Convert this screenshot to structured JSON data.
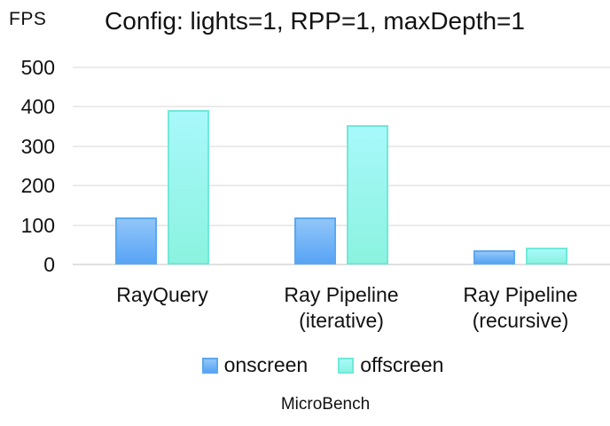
{
  "chart_data": {
    "type": "bar",
    "title": "Config: lights=1, RPP=1, maxDepth=1",
    "ylabel": "FPS",
    "xlabel": "",
    "ylim": [
      0,
      500
    ],
    "yticks": [
      0,
      100,
      200,
      300,
      400,
      500
    ],
    "grid": true,
    "legend_position": "bottom",
    "caption": "MicroBench",
    "categories": [
      [
        "RayQuery"
      ],
      [
        "Ray Pipeline",
        "(iterative)"
      ],
      [
        "Ray Pipeline",
        "(recursive)"
      ]
    ],
    "series": [
      {
        "name": "onscreen",
        "values": [
          120,
          120,
          35
        ],
        "fill_top": "#92C6F8",
        "fill_bottom": "#58A4F5",
        "border": "#5BA8F0"
      },
      {
        "name": "offscreen",
        "values": [
          393,
          353,
          42
        ],
        "fill_top": "#A8F8FB",
        "fill_bottom": "#8BF3DF",
        "border": "#70E9D9"
      }
    ],
    "colors": {
      "gridline": "#EBEBEB",
      "axis_line": "#E0E0E0",
      "text": "#111111",
      "background": "#FFFFFF"
    }
  }
}
